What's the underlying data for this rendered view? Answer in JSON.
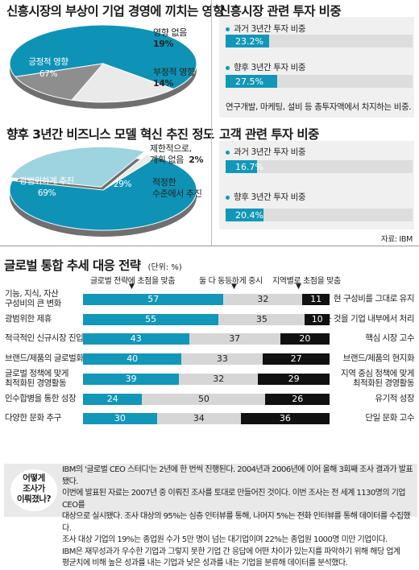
{
  "pie1": {
    "title": "신흥시장의 부상이 기업 경영에 끼치는 영향",
    "slices": [
      {
        "label": "긍정적 영향",
        "value": 67,
        "pct": "67%",
        "color": "#0e93b6"
      },
      {
        "label": "영향 없음",
        "value": 19,
        "pct": "19%",
        "color": "#eaeaea"
      },
      {
        "label": "부정적 영향",
        "value": 14,
        "pct": "14%",
        "color": "#8e8e8e"
      }
    ]
  },
  "pie2": {
    "title": "향후 3년간 비즈니스 모델 혁신 추진 정도",
    "slices": [
      {
        "label": "광범위하게 추진",
        "value": 69,
        "pct": "69%",
        "color": "#0e93b6"
      },
      {
        "label": "적정한 수준에서 추진",
        "value": 29,
        "pct": "29%",
        "color": "#9ed3e0"
      },
      {
        "label": "제한적으로, 계획 없음",
        "value": 2,
        "pct": "2%",
        "color": "#eaeaea"
      }
    ],
    "label2_line1": "제한적으로,",
    "label2_line2": "계획 없음",
    "label1_line1": "적정한",
    "label1_line2": "수준에서 추진"
  },
  "inv1": {
    "title": "신흥시장 관련 투자 비중",
    "items": [
      {
        "label": "과거 3년간 투자 비중",
        "value": 23.2,
        "text": "23.2%"
      },
      {
        "label": "향후 3년간 투자 비중",
        "value": 27.5,
        "text": "27.5%"
      }
    ],
    "note": "연구개발, 마케팅, 설비 등 총투자액에서 차지하는 비중."
  },
  "inv2": {
    "title": "고객 관련 투자 비중",
    "items": [
      {
        "label": "과거 3년간 투자 비중",
        "value": 16.7,
        "text": "16.7%"
      },
      {
        "label": "향후 3년간 투자 비중",
        "value": 20.4,
        "text": "20.4%"
      }
    ]
  },
  "source": "자료: IBM",
  "global": {
    "title": "글로벌 통합 추세 대응 전략",
    "unit": "(단위: %)",
    "header_left": "글로벌 전략에 초점을 맞춤",
    "header_mid": "둘 다 동등하게 중시",
    "header_right": "지역별로 초점을 맞춤"
  },
  "chart_data": {
    "type": "bar",
    "title": "글로벌 통합 추세 대응 전략",
    "unit": "(단위: %)",
    "series": [
      {
        "name": "글로벌 전략에 초점을 맞춤",
        "color": "#1297b8",
        "values": [
          57,
          55,
          43,
          40,
          39,
          24,
          30
        ]
      },
      {
        "name": "둘 다 동등하게 중시",
        "color": "#d6d6d6",
        "values": [
          32,
          35,
          37,
          33,
          32,
          50,
          34
        ]
      },
      {
        "name": "지역별로 초점을 맞춤",
        "color": "#111111",
        "values": [
          11,
          10,
          20,
          27,
          29,
          26,
          36
        ]
      }
    ],
    "rows": [
      {
        "left": [
          "기능, 지식, 자산",
          "구성비의 큰 변화"
        ],
        "right": [
          "현 구성비를 그대로 유지"
        ]
      },
      {
        "left": [
          "광범위한 제휴"
        ],
        "right": [
          "모든 것을 기업 내부에서 처리"
        ]
      },
      {
        "left": [
          "적극적인 신규시장 진입"
        ],
        "right": [
          "핵심 시장 고수"
        ]
      },
      {
        "left": [
          "브랜드/제품의 글로벌화"
        ],
        "right": [
          "브랜드/제품의 현지화"
        ]
      },
      {
        "left": [
          "글로벌 정책에 맞게",
          "최적화된 경영활동"
        ],
        "right": [
          "지역 중심 정책에 맞게",
          "최적화된 경영활동"
        ]
      },
      {
        "left": [
          "인수합병을 통한 성장"
        ],
        "right": [
          "유기적 성장"
        ]
      },
      {
        "left": [
          "다양한 문화 추구"
        ],
        "right": [
          "단일 문화 고수"
        ]
      }
    ]
  },
  "box": {
    "title_lines": [
      "어떻게",
      "조사가",
      "이뤄졌나?"
    ],
    "lines": [
      "IBM의 '글로벌 CEO 스터디'는 2년에 한 번씩 진행된다. 2004년과 2006년에 이어 올해 3회째 조사 결과가 발표됐다.",
      "이번에 발표된 자료는 2007년 중 이뤄진 조사를 토대로 만들어진 것이다. 이번 조사는 전 세계 1130명의 기업 CEO를",
      "대상으로 실시됐다. 조사 대상의 95%는 심층 인터뷰를 통해, 나머지 5%는 전화 인터뷰를 통해 데이터를 수집했다.",
      "조사 대상 기업의 19%는 종업원 수가 5만 명이 넘는 대기업이며 22%는 종업원 1000명 미만 기업이다.",
      "IBM은 재무성과가 우수한 기업과 그렇지 못한 기업 간 응답에 어떤 차이가 있는지를 파악하기 위해 해당 업계",
      "평균치에 비해 높은 성과를 내는 기업과 낮은 성과를 내는 기업을 분류해 데이터를 분석했다."
    ]
  }
}
